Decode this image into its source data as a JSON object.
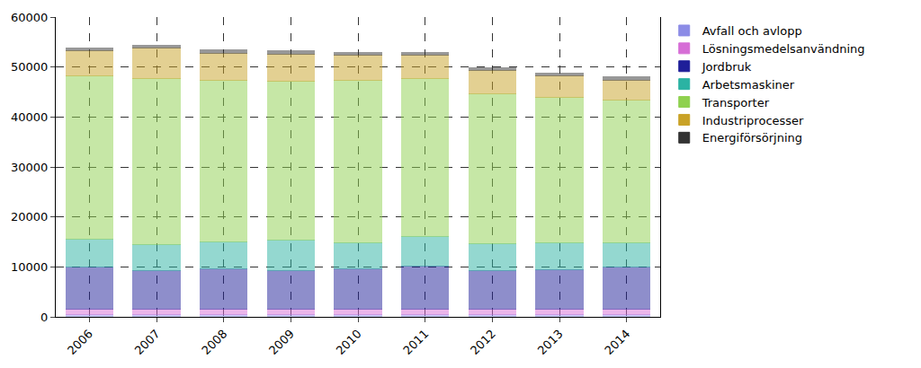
{
  "chart_data": {
    "type": "bar",
    "stacked": true,
    "grid": true,
    "legend": "top right",
    "categories": [
      "2006",
      "2007",
      "2008",
      "2009",
      "2010",
      "2011",
      "2012",
      "2013",
      "2014"
    ],
    "ylim": [
      0,
      60000
    ],
    "yticks": [
      0,
      10000,
      20000,
      30000,
      40000,
      50000,
      60000
    ],
    "series": [
      {
        "name": "Avfall och avlopp",
        "color": "#8c8ce6",
        "values": [
          500,
          500,
          500,
          500,
          500,
          500,
          500,
          500,
          500
        ]
      },
      {
        "name": "Lösningsmedelsanvändning",
        "color": "#d66ed6",
        "values": [
          1000,
          1000,
          1100,
          1000,
          1000,
          1000,
          1000,
          1000,
          1000
        ]
      },
      {
        "name": "Jordbruk",
        "color": "#1f1f99",
        "values": [
          8400,
          7700,
          8100,
          7700,
          8100,
          8700,
          7700,
          8000,
          8400
        ]
      },
      {
        "name": "Arbetsmaskiner",
        "color": "#2bb3a3",
        "values": [
          5600,
          5200,
          5300,
          6200,
          5200,
          5800,
          5500,
          5400,
          4900
        ]
      },
      {
        "name": "Transporter",
        "color": "#8fd14f",
        "values": [
          32800,
          33300,
          32400,
          31800,
          32500,
          31700,
          30000,
          29000,
          28500
        ]
      },
      {
        "name": "Industriprocesser",
        "color": "#c9a227",
        "values": [
          4900,
          6100,
          5400,
          5400,
          5000,
          4600,
          4700,
          4300,
          4100
        ]
      },
      {
        "name": "Energiförsörjning",
        "color": "#333333",
        "values": [
          600,
          600,
          600,
          600,
          600,
          600,
          500,
          600,
          600
        ]
      }
    ]
  }
}
